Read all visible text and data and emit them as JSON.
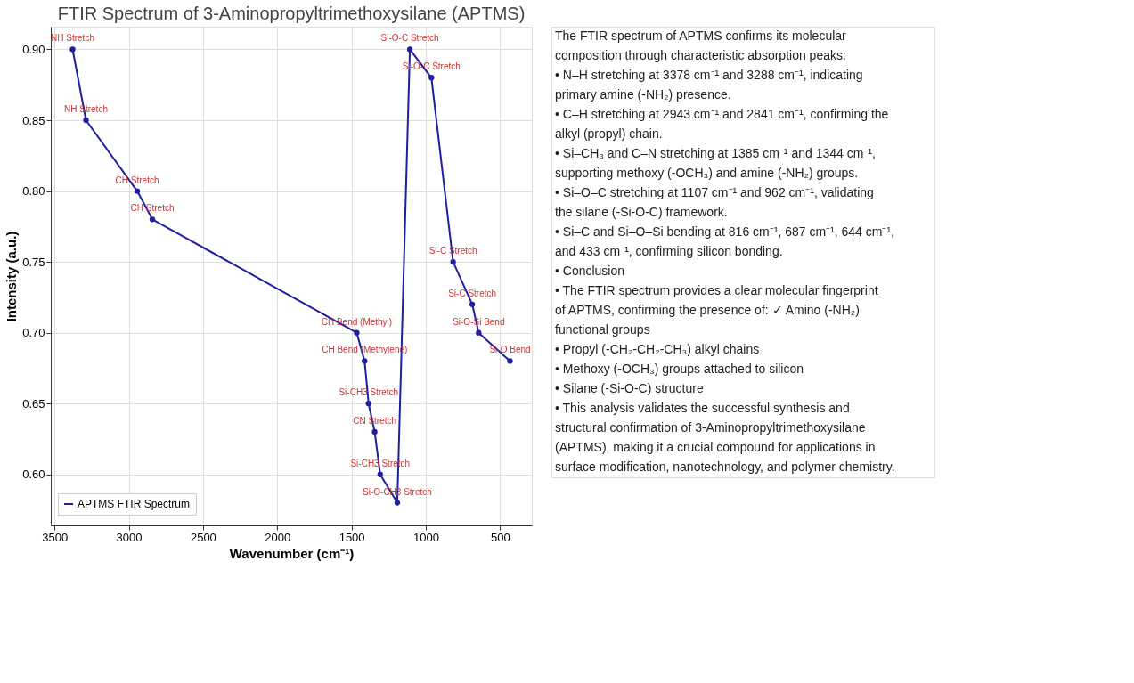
{
  "chart_data": [
    {
      "type": "line",
      "title": "FTIR Spectrum of 3-Aminopropyltrimethoxysilane (APTMS)",
      "xlabel": "Wavenumber (cm⁻¹)",
      "ylabel": "Intensity (a.u.)",
      "x": [
        3378,
        3288,
        2943,
        2841,
        1465,
        1412,
        1385,
        1344,
        1307,
        1192,
        1107,
        962,
        816,
        687,
        644,
        433
      ],
      "series": [
        {
          "name": "APTMS FTIR Spectrum",
          "color": "#1f1fa0",
          "values": [
            0.9,
            0.85,
            0.8,
            0.78,
            0.7,
            0.68,
            0.65,
            0.63,
            0.6,
            0.58,
            0.9,
            0.88,
            0.75,
            0.72,
            0.7,
            0.68
          ]
        }
      ],
      "xlim": [
        3525,
        286
      ],
      "xticks": [
        3500,
        3000,
        2500,
        2000,
        1500,
        1000,
        500
      ],
      "ylim": [
        0.564,
        0.916
      ],
      "yticks": [
        {
          "value": 0.6,
          "label": "0.60"
        },
        0.65,
        {
          "value": 0.7,
          "label": "0.70"
        },
        0.75,
        {
          "value": 0.8,
          "label": "0.80"
        },
        0.85,
        {
          "value": 0.9,
          "label": "0.90"
        }
      ],
      "grid": true,
      "legend": "bottom left",
      "marker": "circle",
      "line_style": "solid",
      "annotations": [
        {
          "text": "NH Stretch",
          "x": 3378,
          "y": 0.9
        },
        {
          "text": "NH Stretch",
          "x": 3288,
          "y": 0.85
        },
        {
          "text": "CH Stretch",
          "x": 2943,
          "y": 0.8
        },
        {
          "text": "CH Stretch",
          "x": 2841,
          "y": 0.78
        },
        {
          "text": "CH Bend (Methyl)",
          "x": 1465,
          "y": 0.7
        },
        {
          "text": "CH Bend (Methylene)",
          "x": 1412,
          "y": 0.68
        },
        {
          "text": "Si-CH3 Stretch",
          "x": 1385,
          "y": 0.65
        },
        {
          "text": "CN Stretch",
          "x": 1344,
          "y": 0.63
        },
        {
          "text": "Si-CH3 Stretch",
          "x": 1307,
          "y": 0.6
        },
        {
          "text": "Si-O-CH3 Stretch",
          "x": 1192,
          "y": 0.58
        },
        {
          "text": "Si-O-C Stretch",
          "x": 1107,
          "y": 0.9
        },
        {
          "text": "Si-O-C Stretch",
          "x": 962,
          "y": 0.88
        },
        {
          "text": "Si-C Stretch",
          "x": 816,
          "y": 0.75
        },
        {
          "text": "Si-C Stretch",
          "x": 687,
          "y": 0.72
        },
        {
          "text": "Si-O-Si Bend",
          "x": 644,
          "y": 0.7
        },
        {
          "text": "Si-O Bend",
          "x": 433,
          "y": 0.68
        }
      ]
    },
    {
      "type": "other",
      "annotations": [
        "The FTIR spectrum of APTMS confirms its molecular composition through characteristic absorption peaks:",
        "• N–H stretching at 3378 cm⁻¹ and 3288 cm⁻¹, indicating primary amine (-NH₂) presence.",
        "• C–H stretching at 2943 cm⁻¹ and 2841 cm⁻¹, confirming the alkyl (propyl) chain.",
        "• Si–CH₃ and C–N stretching at 1385 cm⁻¹ and 1344 cm⁻¹, supporting methoxy (-OCH₃) and amine (-NH₂) groups.",
        "• Si–O–C stretching at 1107 cm⁻¹ and 962 cm⁻¹, validating the silane (-Si-O-C) framework.",
        "• Si–C and Si–O–Si bending at 816 cm⁻¹, 687 cm⁻¹, 644 cm⁻¹, and 433 cm⁻¹, confirming silicon bonding.",
        "• Conclusion",
        "• The FTIR spectrum provides a clear molecular fingerprint of APTMS, confirming the presence of: ✓ Amino (-NH₂) functional groups",
        "• Propyl (-CH₂-CH₂-CH₃) alkyl chains",
        "• Methoxy (-OCH₃) groups attached to silicon",
        "• Silane (-Si-O-C) structure",
        "• This analysis validates the successful synthesis and structural confirmation of 3-Aminopropyltrimethoxysilane (APTMS), making it a crucial compound for applications in surface modification, nanotechnology, and polymer chemistry."
      ]
    }
  ]
}
